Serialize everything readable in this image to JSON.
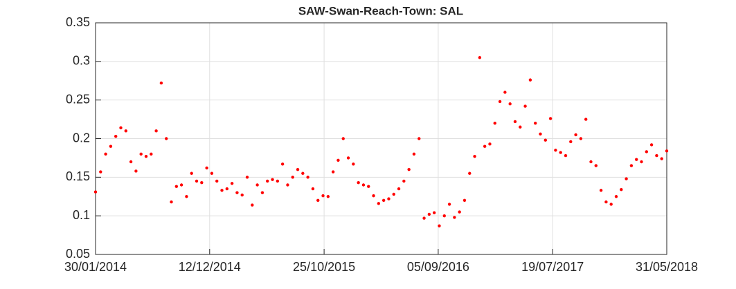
{
  "chart_data": {
    "type": "scatter",
    "title": "SAW-Swan-Reach-Town: SAL",
    "x": [
      "2014-01-30",
      "2014-02-13",
      "2014-02-27",
      "2014-03-13",
      "2014-03-27",
      "2014-04-10",
      "2014-04-24",
      "2014-05-08",
      "2014-05-22",
      "2014-06-05",
      "2014-06-19",
      "2014-07-03",
      "2014-07-17",
      "2014-07-31",
      "2014-08-14",
      "2014-08-28",
      "2014-09-11",
      "2014-09-25",
      "2014-10-09",
      "2014-10-23",
      "2014-11-06",
      "2014-11-20",
      "2014-12-04",
      "2014-12-18",
      "2015-01-01",
      "2015-01-15",
      "2015-01-29",
      "2015-02-12",
      "2015-02-26",
      "2015-03-12",
      "2015-03-26",
      "2015-04-09",
      "2015-04-23",
      "2015-05-07",
      "2015-05-21",
      "2015-06-04",
      "2015-06-18",
      "2015-07-02",
      "2015-07-16",
      "2015-07-30",
      "2015-08-13",
      "2015-08-27",
      "2015-09-10",
      "2015-09-24",
      "2015-10-08",
      "2015-10-22",
      "2015-11-05",
      "2015-11-19",
      "2015-12-03",
      "2015-12-17",
      "2015-12-31",
      "2016-01-14",
      "2016-01-28",
      "2016-02-11",
      "2016-02-25",
      "2016-03-10",
      "2016-03-24",
      "2016-04-07",
      "2016-04-21",
      "2016-05-05",
      "2016-05-19",
      "2016-06-02",
      "2016-06-16",
      "2016-06-30",
      "2016-07-14",
      "2016-07-28",
      "2016-08-11",
      "2016-08-25",
      "2016-09-08",
      "2016-09-22",
      "2016-10-06",
      "2016-10-20",
      "2016-11-03",
      "2016-11-17",
      "2016-12-01",
      "2016-12-15",
      "2016-12-29",
      "2017-01-12",
      "2017-01-26",
      "2017-02-09",
      "2017-02-23",
      "2017-03-09",
      "2017-03-23",
      "2017-04-06",
      "2017-04-20",
      "2017-05-04",
      "2017-05-18",
      "2017-06-01",
      "2017-06-15",
      "2017-06-29",
      "2017-07-13",
      "2017-07-27",
      "2017-08-10",
      "2017-08-24",
      "2017-09-07",
      "2017-09-21",
      "2017-10-05",
      "2017-10-19",
      "2017-11-02",
      "2017-11-16",
      "2017-11-30",
      "2017-12-14",
      "2017-12-28",
      "2018-01-11",
      "2018-01-25",
      "2018-02-08",
      "2018-02-22",
      "2018-03-08",
      "2018-03-22",
      "2018-04-05",
      "2018-04-19",
      "2018-05-03",
      "2018-05-17",
      "2018-05-31"
    ],
    "series": [
      {
        "color": "#ff0000",
        "values": [
          0.131,
          0.157,
          0.18,
          0.19,
          0.203,
          0.214,
          0.21,
          0.17,
          0.158,
          0.18,
          0.177,
          0.18,
          0.21,
          0.272,
          0.2,
          0.118,
          0.138,
          0.14,
          0.125,
          0.155,
          0.145,
          0.143,
          0.162,
          0.155,
          0.145,
          0.133,
          0.135,
          0.142,
          0.13,
          0.127,
          0.15,
          0.114,
          0.14,
          0.13,
          0.145,
          0.147,
          0.145,
          0.167,
          0.14,
          0.15,
          0.16,
          0.155,
          0.15,
          0.135,
          0.12,
          0.126,
          0.125,
          0.157,
          0.172,
          0.2,
          0.175,
          0.167,
          0.143,
          0.14,
          0.138,
          0.126,
          0.116,
          0.12,
          0.122,
          0.128,
          0.135,
          0.145,
          0.16,
          0.18,
          0.2,
          0.097,
          0.102,
          0.104,
          0.087,
          0.1,
          0.115,
          0.098,
          0.105,
          0.12,
          0.155,
          0.177,
          0.305,
          0.19,
          0.193,
          0.22,
          0.248,
          0.26,
          0.245,
          0.222,
          0.215,
          0.242,
          0.276,
          0.22,
          0.206,
          0.198,
          0.226,
          0.185,
          0.182,
          0.178,
          0.196,
          0.205,
          0.2,
          0.225,
          0.17,
          0.165,
          0.133,
          0.118,
          0.115,
          0.125,
          0.134,
          0.148,
          0.165,
          0.173,
          0.17,
          0.183,
          0.192,
          0.178,
          0.174,
          0.184
        ]
      }
    ],
    "xlim": [
      "2014-01-30",
      "2018-05-31"
    ],
    "xticks": [
      {
        "value": "2014-01-30",
        "label": "30/01/2014"
      },
      {
        "value": "2014-12-12",
        "label": "12/12/2014"
      },
      {
        "value": "2015-10-25",
        "label": "25/10/2015"
      },
      {
        "value": "2016-09-05",
        "label": "05/09/2016"
      },
      {
        "value": "2017-07-19",
        "label": "19/07/2017"
      },
      {
        "value": "2018-05-31",
        "label": "31/05/2018"
      }
    ],
    "ylim": [
      0.05,
      0.35
    ],
    "yticks": [
      0.05,
      0.1,
      0.15,
      0.2,
      0.25,
      0.3,
      0.35
    ],
    "grid": true
  }
}
